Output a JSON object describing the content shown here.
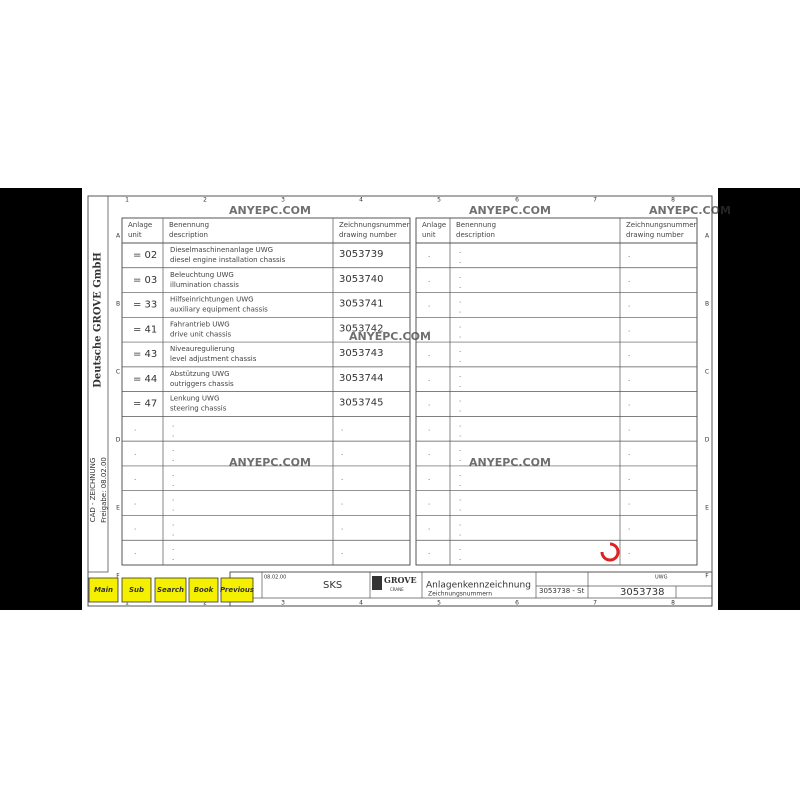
{
  "ruler": {
    "columns": [
      "1",
      "2",
      "3",
      "4",
      "5",
      "6",
      "7",
      "8"
    ],
    "rows": [
      "A",
      "B",
      "C",
      "D",
      "E",
      "F"
    ]
  },
  "side": {
    "company": "Deutsche GROVE GmbH",
    "cad": "CAD - ZEICHNUNG",
    "release": "Freigabe: 08.02.00"
  },
  "table": {
    "headers": {
      "unit": [
        "Anlage",
        "unit"
      ],
      "description": [
        "Benennung",
        "description"
      ],
      "number": [
        "Zeichnungsnummer",
        "drawing number"
      ]
    },
    "placeholder": ".",
    "rows": [
      {
        "unit": "= 02",
        "de": "Dieselmaschinenanlage UWG",
        "en": "diesel engine installation chassis",
        "number": "3053739"
      },
      {
        "unit": "= 03",
        "de": "Beleuchtung UWG",
        "en": "illumination chassis",
        "number": "3053740"
      },
      {
        "unit": "= 33",
        "de": "Hilfseinrichtungen UWG",
        "en": "auxiliary equipment chassis",
        "number": "3053741"
      },
      {
        "unit": "= 41",
        "de": "Fahrantrieb UWG",
        "en": "drive unit chassis",
        "number": "3053742"
      },
      {
        "unit": "= 43",
        "de": "Niveauregulierung",
        "en": "level adjustment chassis",
        "number": "3053743"
      },
      {
        "unit": "= 44",
        "de": "Abstützung UWG",
        "en": "outriggers chassis",
        "number": "3053744"
      },
      {
        "unit": "= 47",
        "de": "Lenkung UWG",
        "en": "steering chassis",
        "number": "3053745"
      }
    ]
  },
  "title_block": {
    "date": "08.02.00",
    "drawn_by": "SKS",
    "logo": "GROVE",
    "logo_sub": "CRANE",
    "title_de": "Anlagenkennzeichnung",
    "title_en": "Zeichnungsnummern",
    "sheet_ref": "3053738 - St",
    "drawing_no": "3053738",
    "group": "UWG"
  },
  "watermark": "ANYEPC.COM",
  "buttons": [
    "Main",
    "Sub",
    "Search",
    "Book",
    "Previous"
  ]
}
